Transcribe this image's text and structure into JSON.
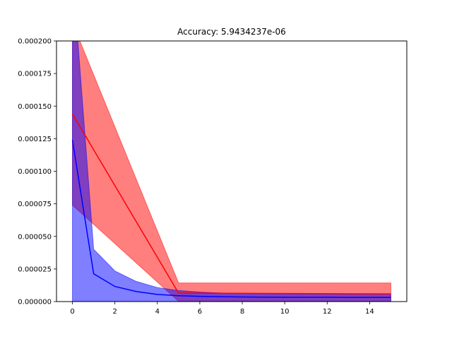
{
  "chart_data": {
    "type": "line",
    "title": "Accuracy: 5.9434237e-06",
    "xlabel": "",
    "ylabel": "",
    "xlim": [
      -0.75,
      15.75
    ],
    "ylim": [
      0,
      0.0002
    ],
    "x_ticks": [
      0,
      2,
      4,
      6,
      8,
      10,
      12,
      14
    ],
    "x_tick_labels": [
      "0",
      "2",
      "4",
      "6",
      "8",
      "10",
      "12",
      "14"
    ],
    "y_ticks": [
      0,
      2.5e-05,
      5e-05,
      7.5e-05,
      0.0001,
      0.000125,
      0.00015,
      0.000175,
      0.0002
    ],
    "y_tick_labels": [
      "0.000000",
      "0.000025",
      "0.000050",
      "0.000075",
      "0.000100",
      "0.000125",
      "0.000150",
      "0.000175",
      "0.000200"
    ],
    "grid": false,
    "legend": "none",
    "series": [
      {
        "color": "#ff0000",
        "band_color": "#ff0000",
        "x": [
          0,
          5,
          15
        ],
        "y": [
          0.000144,
          6.5e-06,
          5.9e-06
        ],
        "lower": [
          7.4e-05,
          2e-07,
          3e-07
        ],
        "upper": [
          0.000214,
          1.43e-05,
          1.43e-05
        ]
      },
      {
        "color": "#0000ff",
        "band_color": "#0000ff",
        "x": [
          0,
          1,
          2,
          3,
          4,
          5,
          6,
          7,
          8,
          9,
          10,
          11,
          12,
          13,
          14,
          15
        ],
        "y": [
          0.000124,
          2.13e-05,
          1.16e-05,
          7.7e-06,
          5.5e-06,
          4.5e-06,
          4e-06,
          3.7e-06,
          3.5e-06,
          3.4e-06,
          3.3e-06,
          3.3e-06,
          3.3e-06,
          3.2e-06,
          3.2e-06,
          3.2e-06
        ],
        "lower": [
          1e-07,
          1e-07,
          1e-07,
          1e-07,
          1e-07,
          1e-07,
          1e-07,
          1e-07,
          1e-07,
          1e-07,
          1e-07,
          1e-07,
          1e-07,
          1e-07,
          1e-07,
          1e-07
        ],
        "upper": [
          0.000255,
          4.02e-05,
          2.35e-05,
          1.55e-05,
          1.08e-05,
          8.5e-06,
          7.3e-06,
          6.6e-06,
          6.2e-06,
          6e-06,
          5.9e-06,
          5.8e-06,
          5.8e-06,
          5.8e-06,
          5.8e-06,
          5.8e-06
        ]
      }
    ]
  }
}
